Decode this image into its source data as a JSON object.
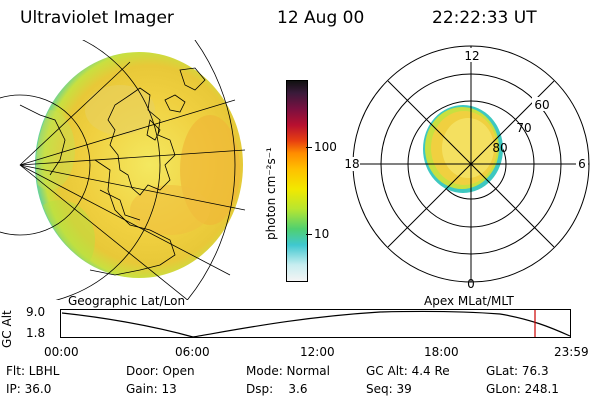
{
  "header": {
    "instrument": "Ultraviolet Imager",
    "date": "12 Aug 00",
    "time": "22:22:33 UT"
  },
  "colorbar": {
    "unit_label": "photon cm⁻²s⁻¹",
    "ticks": [
      "100",
      "10"
    ],
    "colors": [
      "#111111",
      "#3a1a3a",
      "#7a1040",
      "#b81030",
      "#e84010",
      "#ff8c00",
      "#ffc000",
      "#f2e800",
      "#b8e630",
      "#50d070",
      "#40c8d0",
      "#c8eef0",
      "#f4f4f4"
    ]
  },
  "polar": {
    "mlt_labels": [
      "12",
      "18",
      "6",
      "0"
    ],
    "mlat_labels": [
      "60",
      "70",
      "80"
    ]
  },
  "panels": {
    "geo_label": "Geographic Lat/Lon",
    "apex_label": "Apex MLat/MLT"
  },
  "altitude_plot": {
    "axis_label": "GC Alt",
    "y_ticks": [
      "9.0",
      "1.8"
    ],
    "time_ticks": [
      "00:00",
      "06:00",
      "12:00",
      "18:00",
      "23:59"
    ],
    "marker_color": "#cc0000"
  },
  "info": {
    "row1": [
      {
        "label": "Flt: LBHL"
      },
      {
        "label": "Door: Open"
      },
      {
        "label": "Mode: Normal"
      },
      {
        "label": "GC Alt: 4.4 Re"
      },
      {
        "label": "GLat: 76.3"
      }
    ],
    "row2": [
      {
        "label": "IP: 36.0"
      },
      {
        "label": "Gain: 13"
      },
      {
        "label": "Dsp:    3.6"
      },
      {
        "label": "Seq: 39"
      },
      {
        "label": "GLon: 248.1"
      }
    ]
  }
}
